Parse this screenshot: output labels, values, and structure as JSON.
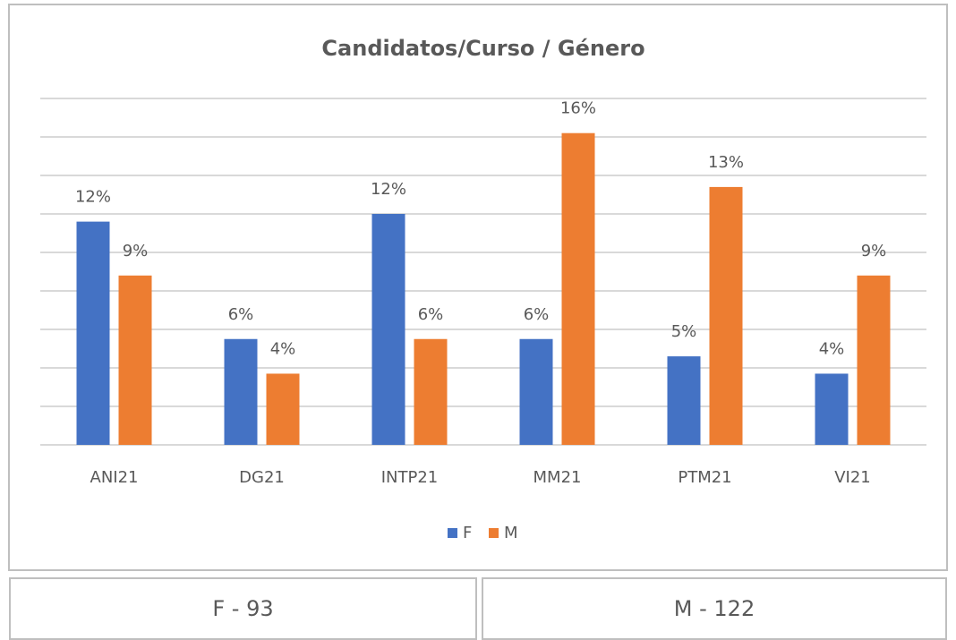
{
  "chart_data": {
    "type": "bar",
    "title": "Candidatos/Curso / Género",
    "categories": [
      "ANI21",
      "DG21",
      "INTP21",
      "MM21",
      "PTM21",
      "VI21"
    ],
    "series": [
      {
        "name": "F",
        "color": "#4472c4",
        "values": [
          11.6,
          5.5,
          12.0,
          5.5,
          4.6,
          3.7
        ],
        "value_labels": [
          "12%",
          "6%",
          "12%",
          "6%",
          "5%",
          "4%"
        ]
      },
      {
        "name": "M",
        "color": "#ed7d31",
        "values": [
          8.8,
          3.7,
          5.5,
          16.2,
          13.4,
          8.8
        ],
        "value_labels": [
          "9%",
          "4%",
          "6%",
          "16%",
          "13%",
          "9%"
        ]
      }
    ],
    "ylim": [
      0,
      18
    ],
    "yticks": [
      0,
      2,
      4,
      6,
      8,
      10,
      12,
      14,
      16,
      18
    ],
    "grid": true,
    "legend": "bottom"
  },
  "summary": [
    "F - 93",
    "M - 122"
  ]
}
